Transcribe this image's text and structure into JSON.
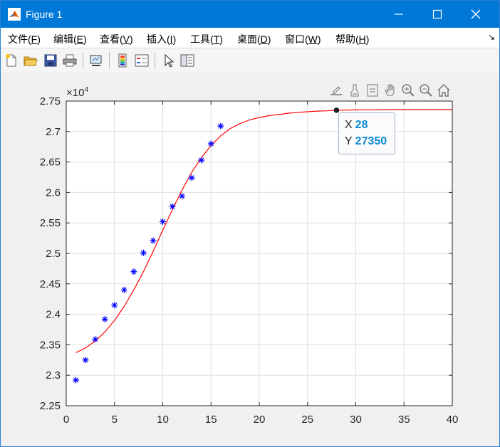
{
  "window": {
    "title": "Figure 1",
    "controls": {
      "minimize": "—",
      "maximize": "☐",
      "close": "✕"
    }
  },
  "menu": [
    {
      "name": "menu-file",
      "label": "文件(",
      "key": "F",
      "suffix": ")"
    },
    {
      "name": "menu-edit",
      "label": "编辑(",
      "key": "E",
      "suffix": ")"
    },
    {
      "name": "menu-view",
      "label": "查看(",
      "key": "V",
      "suffix": ")"
    },
    {
      "name": "menu-insert",
      "label": "插入(",
      "key": "I",
      "suffix": ")"
    },
    {
      "name": "menu-tools",
      "label": "工具(",
      "key": "T",
      "suffix": ")"
    },
    {
      "name": "menu-desktop",
      "label": "桌面(",
      "key": "D",
      "suffix": ")"
    },
    {
      "name": "menu-window",
      "label": "窗口(",
      "key": "W",
      "suffix": ")"
    },
    {
      "name": "menu-help",
      "label": "帮助(",
      "key": "H",
      "suffix": ")"
    }
  ],
  "menu_overflow_glyph": "↘",
  "toolbar_icons": [
    "new-figure-icon",
    "open-file-icon",
    "save-icon",
    "print-icon",
    "link-plot-icon",
    "insert-colorbar-icon",
    "insert-legend-icon",
    "edit-plot-icon",
    "property-inspector-icon"
  ],
  "axes_toolbar_icons": [
    "export-icon",
    "brush-icon",
    "data-tips-icon",
    "pan-icon",
    "zoom-in-icon",
    "zoom-out-icon",
    "restore-view-icon"
  ],
  "axis_exponent": {
    "base": "×10",
    "power": "4"
  },
  "datatip": {
    "x_label": "X",
    "x_value": "28",
    "y_label": "Y",
    "y_value": "27350"
  },
  "colors": {
    "title_bar": "#0078d7",
    "scatter": "#0000ff",
    "fit_line": "#ff0000",
    "datatip_value": "#0c8ad6"
  },
  "chart_data": {
    "type": "scatter",
    "xlim": [
      0,
      40
    ],
    "ylim": [
      22500,
      27500
    ],
    "x_ticks": [
      0,
      5,
      10,
      15,
      20,
      25,
      30,
      35,
      40
    ],
    "x_tick_labels": [
      "0",
      "5",
      "10",
      "15",
      "20",
      "25",
      "30",
      "35",
      "40"
    ],
    "y_ticks": [
      22500,
      23000,
      23500,
      24000,
      24500,
      25000,
      25500,
      26000,
      26500,
      27000,
      27500
    ],
    "y_tick_labels": [
      "2.25",
      "2.3",
      "2.35",
      "2.4",
      "2.45",
      "2.5",
      "2.55",
      "2.6",
      "2.65",
      "2.7",
      "2.75"
    ],
    "grid": true,
    "series": [
      {
        "type": "scatter",
        "marker": "*",
        "color": "#0000ff",
        "x": [
          1,
          2,
          3,
          4,
          5,
          6,
          7,
          8,
          9,
          10,
          11,
          12,
          13,
          14,
          15,
          16
        ],
        "y": [
          22920,
          23250,
          23590,
          23920,
          24150,
          24400,
          24700,
          25010,
          25210,
          25520,
          25770,
          25940,
          26240,
          26530,
          26800,
          27090
        ]
      },
      {
        "type": "line",
        "color": "#ff0000",
        "x": [
          1,
          2,
          3,
          4,
          5,
          6,
          7,
          8,
          9,
          10,
          11,
          12,
          13,
          14,
          15,
          16,
          17,
          18,
          19,
          20,
          21,
          22,
          23,
          24,
          25,
          26,
          27,
          28,
          30,
          32,
          35,
          40
        ],
        "y": [
          23370,
          23450,
          23560,
          23710,
          23900,
          24130,
          24400,
          24700,
          25030,
          25380,
          25720,
          26040,
          26330,
          26570,
          26770,
          26930,
          27050,
          27130,
          27190,
          27230,
          27260,
          27280,
          27300,
          27315,
          27325,
          27335,
          27340,
          27350,
          27355,
          27358,
          27360,
          27360
        ]
      }
    ],
    "highlight_point": {
      "x": 28,
      "y": 27350
    }
  }
}
